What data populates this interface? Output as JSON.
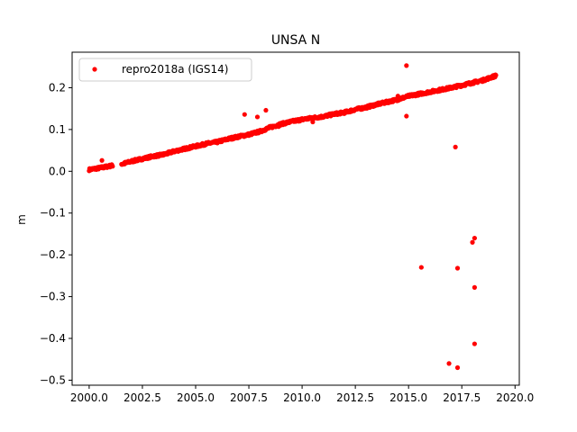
{
  "chart_data": {
    "type": "scatter",
    "title": "UNSA N",
    "xlabel": "",
    "ylabel": "m",
    "xlim": [
      1999.2,
      2020.2
    ],
    "ylim": [
      -0.512,
      0.285
    ],
    "xticks": [
      2000.0,
      2002.5,
      2005.0,
      2007.5,
      2010.0,
      2012.5,
      2015.0,
      2017.5,
      2020.0
    ],
    "xtick_labels": [
      "2000.0",
      "2002.5",
      "2005.0",
      "2007.5",
      "2010.0",
      "2012.5",
      "2015.0",
      "2017.5",
      "2020.0"
    ],
    "yticks": [
      -0.5,
      -0.4,
      -0.3,
      -0.2,
      -0.1,
      0.0,
      0.1,
      0.2
    ],
    "ytick_labels": [
      "−0.5",
      "−0.4",
      "−0.3",
      "−0.2",
      "−0.1",
      "0.0",
      "0.1",
      "0.2"
    ],
    "grid": false,
    "legend_position": "top-left",
    "series": [
      {
        "name": "repro2018a (IGS14)",
        "color": "#ff0000",
        "marker": "dot",
        "trend": [
          [
            2000.0,
            0.004
          ],
          [
            2000.5,
            0.008
          ],
          [
            2001.0,
            0.013
          ],
          [
            2001.6,
            0.018
          ],
          [
            2002.0,
            0.024
          ],
          [
            2002.5,
            0.03
          ],
          [
            2003.0,
            0.036
          ],
          [
            2003.5,
            0.04
          ],
          [
            2004.0,
            0.048
          ],
          [
            2004.5,
            0.054
          ],
          [
            2005.0,
            0.06
          ],
          [
            2005.5,
            0.066
          ],
          [
            2006.0,
            0.07
          ],
          [
            2006.5,
            0.077
          ],
          [
            2007.0,
            0.083
          ],
          [
            2007.5,
            0.088
          ],
          [
            2008.0,
            0.095
          ],
          [
            2008.5,
            0.105
          ],
          [
            2009.0,
            0.113
          ],
          [
            2009.5,
            0.119
          ],
          [
            2010.0,
            0.124
          ],
          [
            2010.5,
            0.128
          ],
          [
            2011.0,
            0.131
          ],
          [
            2011.5,
            0.137
          ],
          [
            2012.0,
            0.141
          ],
          [
            2012.5,
            0.148
          ],
          [
            2013.0,
            0.153
          ],
          [
            2013.5,
            0.16
          ],
          [
            2014.0,
            0.166
          ],
          [
            2014.5,
            0.172
          ],
          [
            2015.0,
            0.18
          ],
          [
            2015.5,
            0.185
          ],
          [
            2016.0,
            0.19
          ],
          [
            2016.5,
            0.195
          ],
          [
            2017.0,
            0.2
          ],
          [
            2017.5,
            0.206
          ],
          [
            2018.0,
            0.212
          ],
          [
            2018.5,
            0.218
          ],
          [
            2019.1,
            0.229
          ]
        ],
        "outliers": [
          [
            2000.6,
            0.026
          ],
          [
            2007.3,
            0.136
          ],
          [
            2007.9,
            0.13
          ],
          [
            2008.3,
            0.146
          ],
          [
            2008.9,
            0.107
          ],
          [
            2010.5,
            0.118
          ],
          [
            2014.5,
            0.18
          ],
          [
            2014.9,
            0.253
          ],
          [
            2014.9,
            0.132
          ],
          [
            2015.6,
            -0.23
          ],
          [
            2016.9,
            -0.46
          ],
          [
            2017.2,
            0.058
          ],
          [
            2017.3,
            -0.232
          ],
          [
            2017.3,
            -0.47
          ],
          [
            2018.0,
            -0.17
          ],
          [
            2018.1,
            -0.16
          ],
          [
            2018.1,
            -0.278
          ],
          [
            2018.1,
            -0.413
          ]
        ]
      }
    ]
  }
}
